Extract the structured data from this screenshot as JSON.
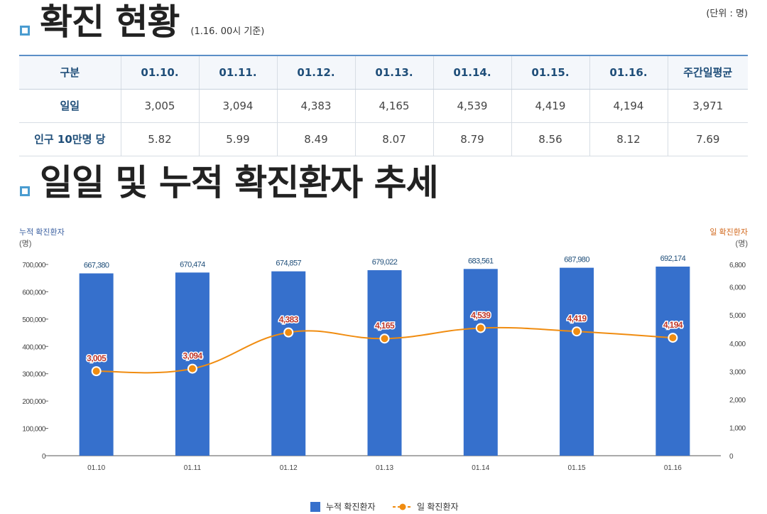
{
  "section1": {
    "title": "확진 현황",
    "subtitle": "(1.16. 00시 기준)",
    "unit": "(단위 : 명)"
  },
  "table": {
    "headers": [
      "구분",
      "01.10.",
      "01.11.",
      "01.12.",
      "01.13.",
      "01.14.",
      "01.15.",
      "01.16.",
      "주간일평균"
    ],
    "rows": [
      [
        "일일",
        "3,005",
        "3,094",
        "4,383",
        "4,165",
        "4,539",
        "4,419",
        "4,194",
        "3,971"
      ],
      [
        "인구 10만명 당",
        "5.82",
        "5.99",
        "8.49",
        "8.07",
        "8.79",
        "8.56",
        "8.12",
        "7.69"
      ]
    ]
  },
  "section2": {
    "title": "일일 및 누적 확진환자 추세"
  },
  "colors": {
    "bar": "#3670cc",
    "line": "#f08c10",
    "label_bar": "#1f4e79",
    "label_line": "#c0392b",
    "left_axis_title": "#3a5fa0",
    "right_axis_title": "#d2691e"
  },
  "chart_data": {
    "type": "bar",
    "categories": [
      "01.10",
      "01.11",
      "01.12",
      "01.13",
      "01.14",
      "01.15",
      "01.16"
    ],
    "series": [
      {
        "name": "누적 확진환자",
        "type": "bar",
        "axis": "left",
        "values": [
          667380,
          670474,
          674857,
          679022,
          683561,
          687980,
          692174
        ],
        "labels": [
          "667,380",
          "670,474",
          "674,857",
          "679,022",
          "683,561",
          "687,980",
          "692,174"
        ]
      },
      {
        "name": "일 확진환자",
        "type": "line",
        "axis": "right",
        "values": [
          3005,
          3094,
          4383,
          4165,
          4539,
          4419,
          4194
        ],
        "labels": [
          "3,005",
          "3,094",
          "4,383",
          "4,165",
          "4,539",
          "4,419",
          "4,194"
        ]
      }
    ],
    "left_axis": {
      "title": "누적 확진환자",
      "unit": "(명)",
      "ylim": [
        0,
        700000
      ],
      "ticks": [
        0,
        100000,
        200000,
        300000,
        400000,
        500000,
        600000,
        700000
      ],
      "tick_labels": [
        "0",
        "100,000",
        "200,000",
        "300,000",
        "400,000",
        "500,000",
        "600,000",
        "700,000"
      ]
    },
    "right_axis": {
      "title": "일 확진환자",
      "unit": "(명)",
      "ylim": [
        0,
        6800
      ],
      "ticks": [
        0,
        1000,
        2000,
        3000,
        4000,
        5000,
        6000,
        6800
      ],
      "tick_labels": [
        "0",
        "1,000",
        "2,000",
        "3,000",
        "4,000",
        "5,000",
        "6,000",
        "6,800"
      ]
    },
    "legend": {
      "position": "bottom",
      "items": [
        "누적 확진환자",
        "일 확진환자"
      ]
    }
  }
}
